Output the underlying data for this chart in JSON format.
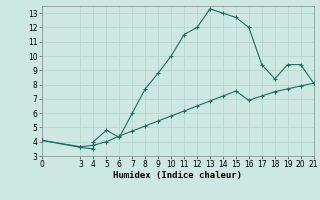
{
  "xlabel": "Humidex (Indice chaleur)",
  "background_color": "#cde8e2",
  "grid_color": "#b8d8d0",
  "line_color": "#1a7060",
  "curve1_x": [
    0,
    3,
    4,
    4,
    5,
    6,
    7,
    8,
    9,
    10,
    11,
    12,
    13,
    14,
    15,
    16,
    17,
    18,
    19,
    20,
    21
  ],
  "curve1_y": [
    4.1,
    3.6,
    3.5,
    4.0,
    4.8,
    4.3,
    6.0,
    7.7,
    8.8,
    10.0,
    11.5,
    12.0,
    13.3,
    13.0,
    12.7,
    12.0,
    9.4,
    8.4,
    9.4,
    9.4,
    8.1
  ],
  "curve2_x": [
    0,
    3,
    4,
    5,
    6,
    7,
    8,
    9,
    10,
    11,
    12,
    13,
    14,
    15,
    16,
    17,
    18,
    19,
    20,
    21
  ],
  "curve2_y": [
    4.1,
    3.65,
    3.75,
    4.0,
    4.4,
    4.75,
    5.1,
    5.45,
    5.8,
    6.15,
    6.5,
    6.85,
    7.2,
    7.55,
    6.9,
    7.2,
    7.5,
    7.7,
    7.9,
    8.1
  ],
  "xlim": [
    0,
    21
  ],
  "ylim": [
    3,
    13.5
  ],
  "xticks": [
    0,
    3,
    4,
    5,
    6,
    7,
    8,
    9,
    10,
    11,
    12,
    13,
    14,
    15,
    16,
    17,
    18,
    19,
    20,
    21
  ],
  "yticks": [
    3,
    4,
    5,
    6,
    7,
    8,
    9,
    10,
    11,
    12,
    13
  ],
  "marker": "+",
  "markersize": 3.5,
  "linewidth": 0.8,
  "xlabel_fontsize": 6.5,
  "tick_fontsize": 5.5
}
